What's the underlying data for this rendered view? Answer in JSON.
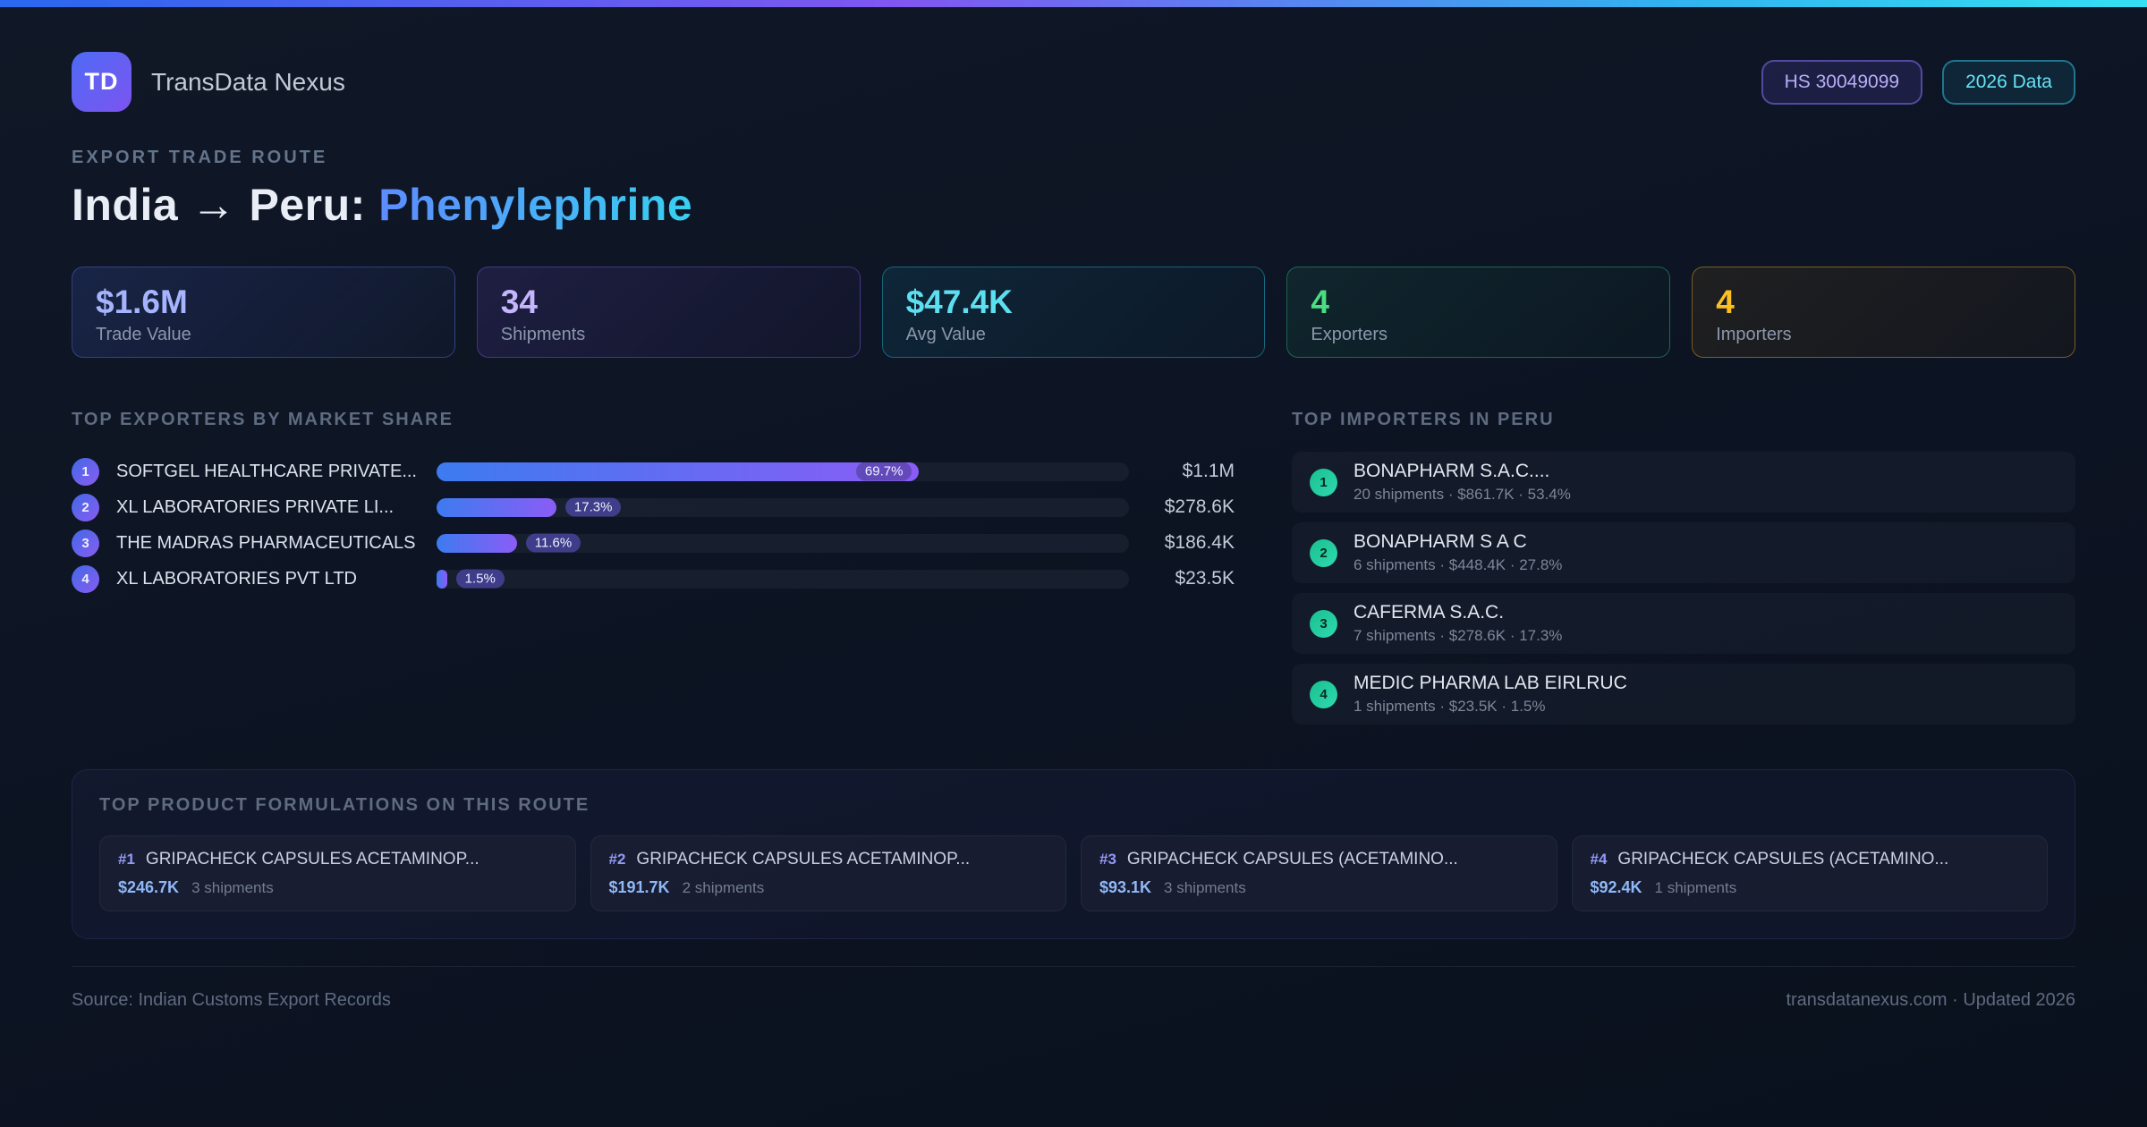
{
  "meta": {
    "brand": "TransData Nexus",
    "logo_initials": "TD",
    "hs_badge": "HS 30049099",
    "year_badge": "2026 Data"
  },
  "palette": {
    "accent_blue": "#4f7df3",
    "accent_purple": "#8b5cf6",
    "accent_cyan": "#38d4f0",
    "accent_green": "#34d399",
    "accent_amber": "#fbbf24"
  },
  "header": {
    "eyebrow": "EXPORT TRADE ROUTE",
    "title_main": "India → Peru: ",
    "title_accent": "Phenylephrine"
  },
  "stats": [
    {
      "value": "$1.6M",
      "label": "Trade Value",
      "color": "#a5b4fc"
    },
    {
      "value": "34",
      "label": "Shipments",
      "color": "#c4b5fd"
    },
    {
      "value": "$47.4K",
      "label": "Avg Value",
      "color": "#5ce0f0"
    },
    {
      "value": "4",
      "label": "Exporters",
      "color": "#4ade80"
    },
    {
      "value": "4",
      "label": "Importers",
      "color": "#fbbf24"
    }
  ],
  "exporters": {
    "title": "TOP EXPORTERS BY MARKET SHARE",
    "rows": [
      {
        "rank": "1",
        "name": "SOFTGEL HEALTHCARE PRIVATE...",
        "pct": 69.7,
        "pct_label": "69.7%",
        "value": "$1.1M"
      },
      {
        "rank": "2",
        "name": "XL LABORATORIES PRIVATE LI...",
        "pct": 17.3,
        "pct_label": "17.3%",
        "value": "$278.6K"
      },
      {
        "rank": "3",
        "name": "THE MADRAS PHARMACEUTICALS",
        "pct": 11.6,
        "pct_label": "11.6%",
        "value": "$186.4K"
      },
      {
        "rank": "4",
        "name": "XL LABORATORIES PVT LTD",
        "pct": 1.5,
        "pct_label": "1.5%",
        "value": "$23.5K"
      }
    ]
  },
  "importers": {
    "title": "TOP IMPORTERS IN PERU",
    "rows": [
      {
        "rank": "1",
        "name": "BONAPHARM S.A.C....",
        "detail": "20 shipments · $861.7K · 53.4%"
      },
      {
        "rank": "2",
        "name": "BONAPHARM S A C",
        "detail": "6 shipments · $448.4K · 27.8%"
      },
      {
        "rank": "3",
        "name": "CAFERMA S.A.C.",
        "detail": "7 shipments · $278.6K · 17.3%"
      },
      {
        "rank": "4",
        "name": "MEDIC PHARMA LAB EIRLRUC",
        "detail": "1 shipments · $23.5K · 1.5%"
      }
    ]
  },
  "formulations": {
    "title": "TOP PRODUCT FORMULATIONS ON THIS ROUTE",
    "cards": [
      {
        "rank": "#1",
        "name": "GRIPACHECK CAPSULES ACETAMINOP...",
        "value": "$246.7K",
        "shipments": "3 shipments"
      },
      {
        "rank": "#2",
        "name": "GRIPACHECK CAPSULES ACETAMINOP...",
        "value": "$191.7K",
        "shipments": "2 shipments"
      },
      {
        "rank": "#3",
        "name": "GRIPACHECK CAPSULES (ACETAMINO...",
        "value": "$93.1K",
        "shipments": "3 shipments"
      },
      {
        "rank": "#4",
        "name": "GRIPACHECK CAPSULES (ACETAMINO...",
        "value": "$92.4K",
        "shipments": "1 shipments"
      }
    ]
  },
  "footer": {
    "source": "Source: Indian Customs Export Records",
    "right": "transdatanexus.com · Updated 2026"
  },
  "chart_data": {
    "type": "bar",
    "title": "TOP EXPORTERS BY MARKET SHARE",
    "categories": [
      "SOFTGEL HEALTHCARE PRIVATE...",
      "XL LABORATORIES PRIVATE LI...",
      "THE MADRAS PHARMACEUTICALS",
      "XL LABORATORIES PVT LTD"
    ],
    "values": [
      69.7,
      17.3,
      11.6,
      1.5
    ],
    "value_labels": [
      "$1.1M",
      "$278.6K",
      "$186.4K",
      "$23.5K"
    ],
    "ylabel": "market share (%)",
    "xlim": [
      0,
      100
    ],
    "orientation": "horizontal",
    "legend": "off"
  }
}
